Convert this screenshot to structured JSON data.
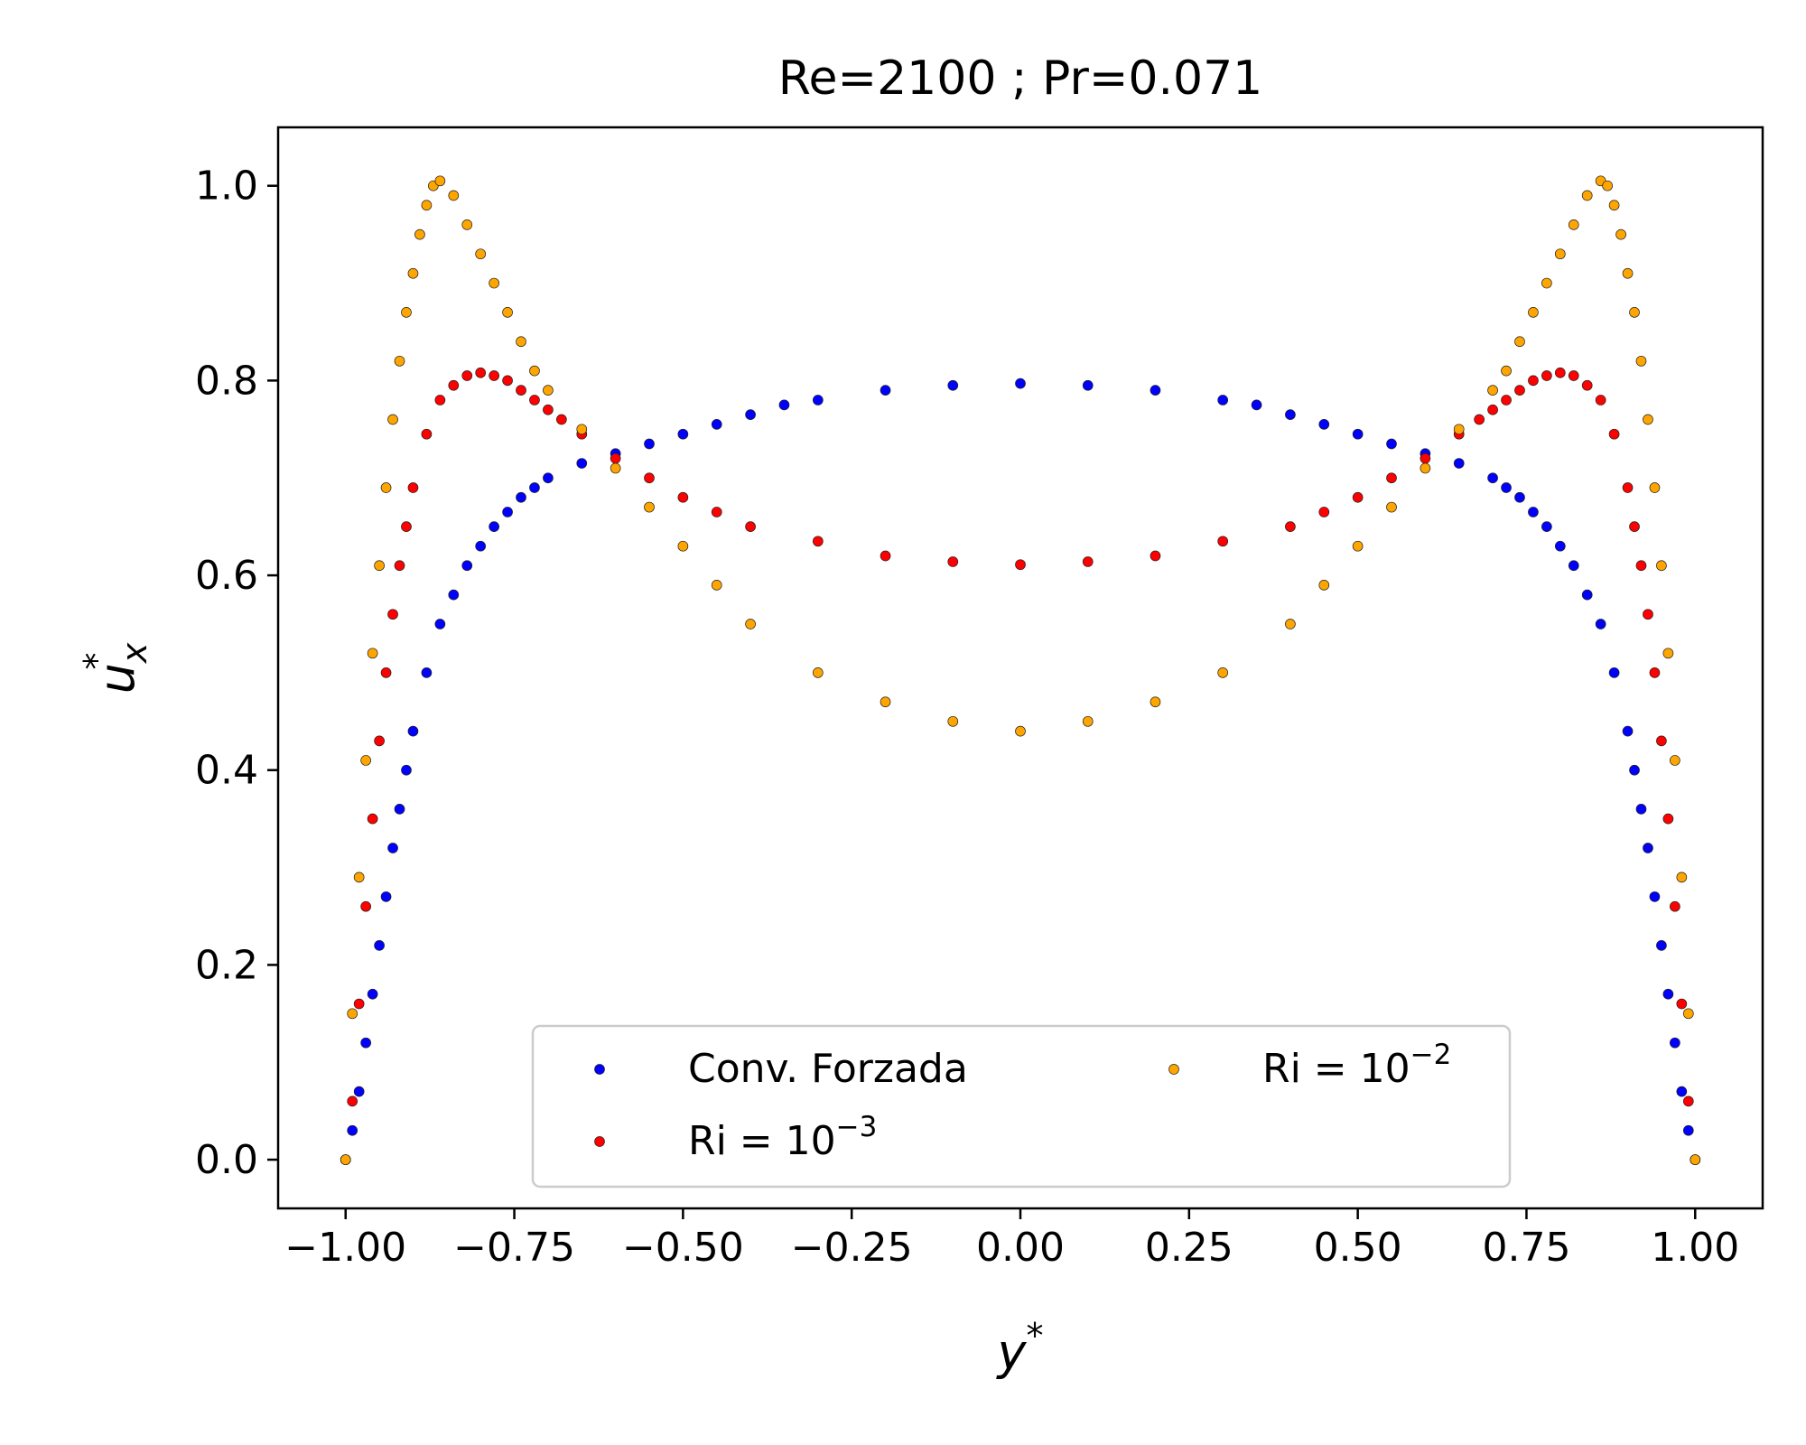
{
  "chart_data": {
    "type": "scatter",
    "title": "Re=2100 ; Pr=0.071",
    "xlabel": {
      "base": "y",
      "sup": "*"
    },
    "ylabel": {
      "base": "u",
      "sup": "*",
      "sub": "x"
    },
    "xlim": [
      -1.1,
      1.1
    ],
    "ylim": [
      -0.05,
      1.06
    ],
    "xticks": [
      -1.0,
      -0.75,
      -0.5,
      -0.25,
      0.0,
      0.25,
      0.5,
      0.75,
      1.0
    ],
    "xtick_labels": [
      "−1.00",
      "−0.75",
      "−0.50",
      "−0.25",
      "0.00",
      "0.25",
      "0.50",
      "0.75",
      "1.00"
    ],
    "yticks": [
      0.0,
      0.2,
      0.4,
      0.6,
      0.8,
      1.0
    ],
    "ytick_labels": [
      "0.0",
      "0.2",
      "0.4",
      "0.6",
      "0.8",
      "1.0"
    ],
    "grid": false,
    "legend_placement": "lower center",
    "legend_columns": 2,
    "series": [
      {
        "name": "Conv. Forzada",
        "color": "#0000ff",
        "x": [
          -1.0,
          -0.99,
          -0.98,
          -0.97,
          -0.96,
          -0.95,
          -0.94,
          -0.93,
          -0.92,
          -0.91,
          -0.9,
          -0.88,
          -0.86,
          -0.84,
          -0.82,
          -0.8,
          -0.78,
          -0.76,
          -0.74,
          -0.72,
          -0.7,
          -0.65,
          -0.6,
          -0.55,
          -0.5,
          -0.45,
          -0.4,
          -0.35,
          -0.3,
          -0.2,
          -0.1,
          0.0,
          0.1,
          0.2,
          0.3,
          0.35,
          0.4,
          0.45,
          0.5,
          0.55,
          0.6,
          0.65,
          0.7,
          0.72,
          0.74,
          0.76,
          0.78,
          0.8,
          0.82,
          0.84,
          0.86,
          0.88,
          0.9,
          0.91,
          0.92,
          0.93,
          0.94,
          0.95,
          0.96,
          0.97,
          0.98,
          0.99,
          1.0
        ],
        "y": [
          0.0,
          0.03,
          0.07,
          0.12,
          0.17,
          0.22,
          0.27,
          0.32,
          0.36,
          0.4,
          0.44,
          0.5,
          0.55,
          0.58,
          0.61,
          0.63,
          0.65,
          0.665,
          0.68,
          0.69,
          0.7,
          0.715,
          0.725,
          0.735,
          0.745,
          0.755,
          0.765,
          0.775,
          0.78,
          0.79,
          0.795,
          0.797,
          0.795,
          0.79,
          0.78,
          0.775,
          0.765,
          0.755,
          0.745,
          0.735,
          0.725,
          0.715,
          0.7,
          0.69,
          0.68,
          0.665,
          0.65,
          0.63,
          0.61,
          0.58,
          0.55,
          0.5,
          0.44,
          0.4,
          0.36,
          0.32,
          0.27,
          0.22,
          0.17,
          0.12,
          0.07,
          0.03,
          0.0
        ]
      },
      {
        "name": "Ri = 10⁻³",
        "color": "#ff0000",
        "x": [
          -1.0,
          -0.99,
          -0.98,
          -0.97,
          -0.96,
          -0.95,
          -0.94,
          -0.93,
          -0.92,
          -0.91,
          -0.9,
          -0.88,
          -0.86,
          -0.84,
          -0.82,
          -0.8,
          -0.78,
          -0.76,
          -0.74,
          -0.72,
          -0.7,
          -0.68,
          -0.65,
          -0.6,
          -0.55,
          -0.5,
          -0.45,
          -0.4,
          -0.3,
          -0.2,
          -0.1,
          0.0,
          0.1,
          0.2,
          0.3,
          0.4,
          0.45,
          0.5,
          0.55,
          0.6,
          0.65,
          0.68,
          0.7,
          0.72,
          0.74,
          0.76,
          0.78,
          0.8,
          0.82,
          0.84,
          0.86,
          0.88,
          0.9,
          0.91,
          0.92,
          0.93,
          0.94,
          0.95,
          0.96,
          0.97,
          0.98,
          0.99,
          1.0
        ],
        "y": [
          0.0,
          0.06,
          0.16,
          0.26,
          0.35,
          0.43,
          0.5,
          0.56,
          0.61,
          0.65,
          0.69,
          0.745,
          0.78,
          0.795,
          0.805,
          0.808,
          0.805,
          0.8,
          0.79,
          0.78,
          0.77,
          0.76,
          0.745,
          0.72,
          0.7,
          0.68,
          0.665,
          0.65,
          0.635,
          0.62,
          0.614,
          0.611,
          0.614,
          0.62,
          0.635,
          0.65,
          0.665,
          0.68,
          0.7,
          0.72,
          0.745,
          0.76,
          0.77,
          0.78,
          0.79,
          0.8,
          0.805,
          0.808,
          0.805,
          0.795,
          0.78,
          0.745,
          0.69,
          0.65,
          0.61,
          0.56,
          0.5,
          0.43,
          0.35,
          0.26,
          0.16,
          0.06,
          0.0
        ]
      },
      {
        "name": "Ri = 10⁻²",
        "color": "#ffa500",
        "x": [
          -1.0,
          -0.99,
          -0.98,
          -0.97,
          -0.96,
          -0.95,
          -0.94,
          -0.93,
          -0.92,
          -0.91,
          -0.9,
          -0.89,
          -0.88,
          -0.87,
          -0.86,
          -0.84,
          -0.82,
          -0.8,
          -0.78,
          -0.76,
          -0.74,
          -0.72,
          -0.7,
          -0.65,
          -0.6,
          -0.55,
          -0.5,
          -0.45,
          -0.4,
          -0.3,
          -0.2,
          -0.1,
          0.0,
          0.1,
          0.2,
          0.3,
          0.4,
          0.45,
          0.5,
          0.55,
          0.6,
          0.65,
          0.7,
          0.72,
          0.74,
          0.76,
          0.78,
          0.8,
          0.82,
          0.84,
          0.86,
          0.87,
          0.88,
          0.89,
          0.9,
          0.91,
          0.92,
          0.93,
          0.94,
          0.95,
          0.96,
          0.97,
          0.98,
          0.99,
          1.0
        ],
        "y": [
          0.0,
          0.15,
          0.29,
          0.41,
          0.52,
          0.61,
          0.69,
          0.76,
          0.82,
          0.87,
          0.91,
          0.95,
          0.98,
          1.0,
          1.005,
          0.99,
          0.96,
          0.93,
          0.9,
          0.87,
          0.84,
          0.81,
          0.79,
          0.75,
          0.71,
          0.67,
          0.63,
          0.59,
          0.55,
          0.5,
          0.47,
          0.45,
          0.44,
          0.45,
          0.47,
          0.5,
          0.55,
          0.59,
          0.63,
          0.67,
          0.71,
          0.75,
          0.79,
          0.81,
          0.84,
          0.87,
          0.9,
          0.93,
          0.96,
          0.99,
          1.005,
          1.0,
          0.98,
          0.95,
          0.91,
          0.87,
          0.82,
          0.76,
          0.69,
          0.61,
          0.52,
          0.41,
          0.29,
          0.15,
          0.0
        ]
      }
    ],
    "legend": [
      {
        "series": 0,
        "base": "Conv. Forzada",
        "sup": ""
      },
      {
        "series": 1,
        "base": "Ri = 10",
        "sup": "−3"
      },
      {
        "series": 2,
        "base": "Ri = 10",
        "sup": "−2"
      }
    ]
  }
}
